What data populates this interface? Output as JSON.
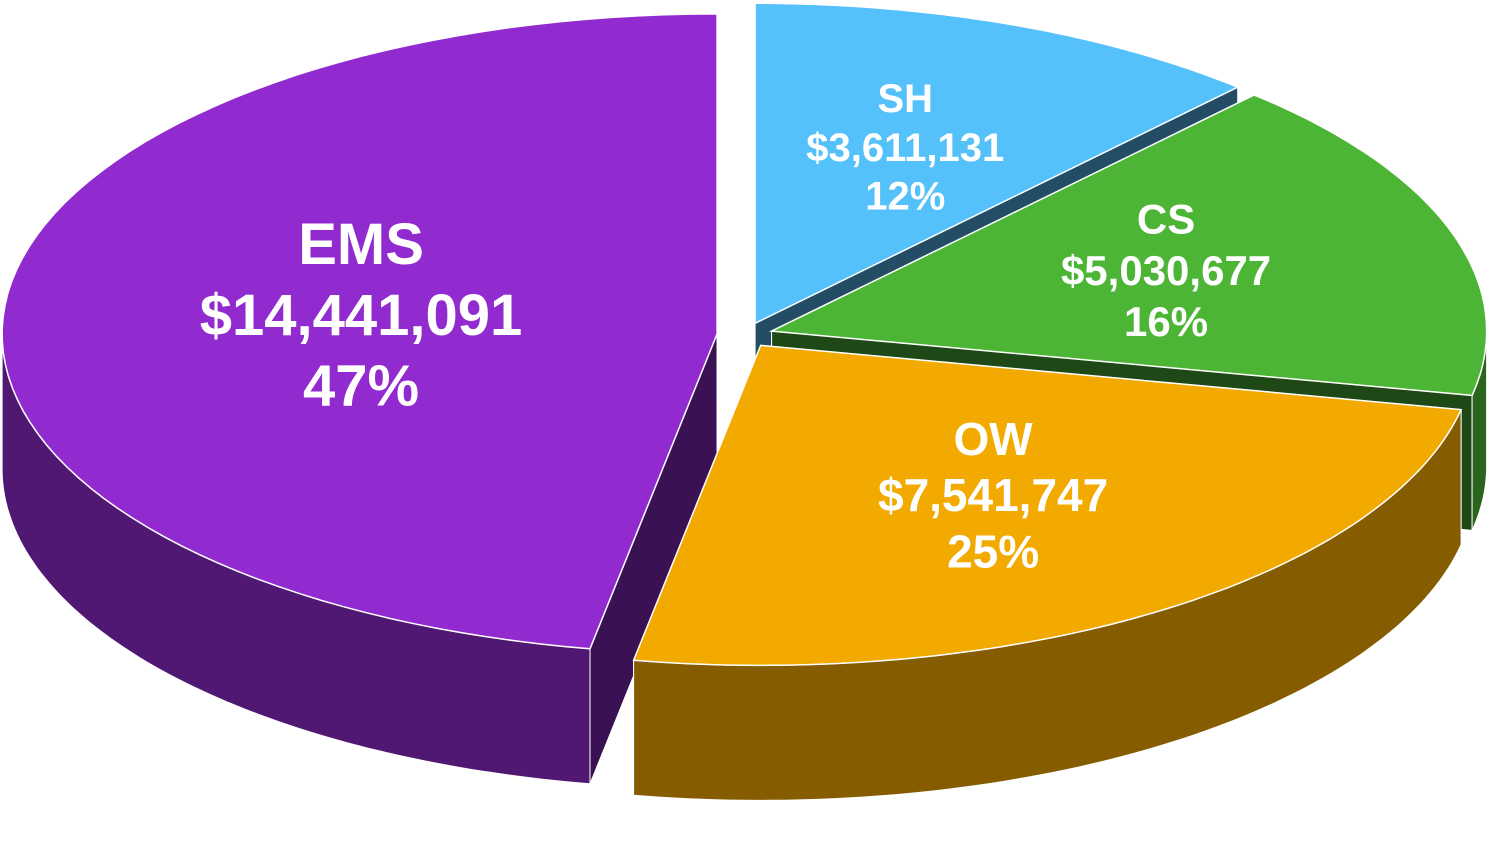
{
  "chart_data": {
    "type": "pie3d",
    "categories": [
      "SH",
      "CS",
      "OW",
      "EMS"
    ],
    "values": [
      3611131,
      5030677,
      7541747,
      14441091
    ],
    "value_labels": [
      "$3,611,131",
      "$5,030,677",
      "$7,541,747",
      "$14,441,091"
    ],
    "percent_labels": [
      "12%",
      "16%",
      "25%",
      "47%"
    ],
    "colors": [
      "#55c1fb",
      "#4cb535",
      "#f2a900",
      "#912bcf"
    ]
  }
}
